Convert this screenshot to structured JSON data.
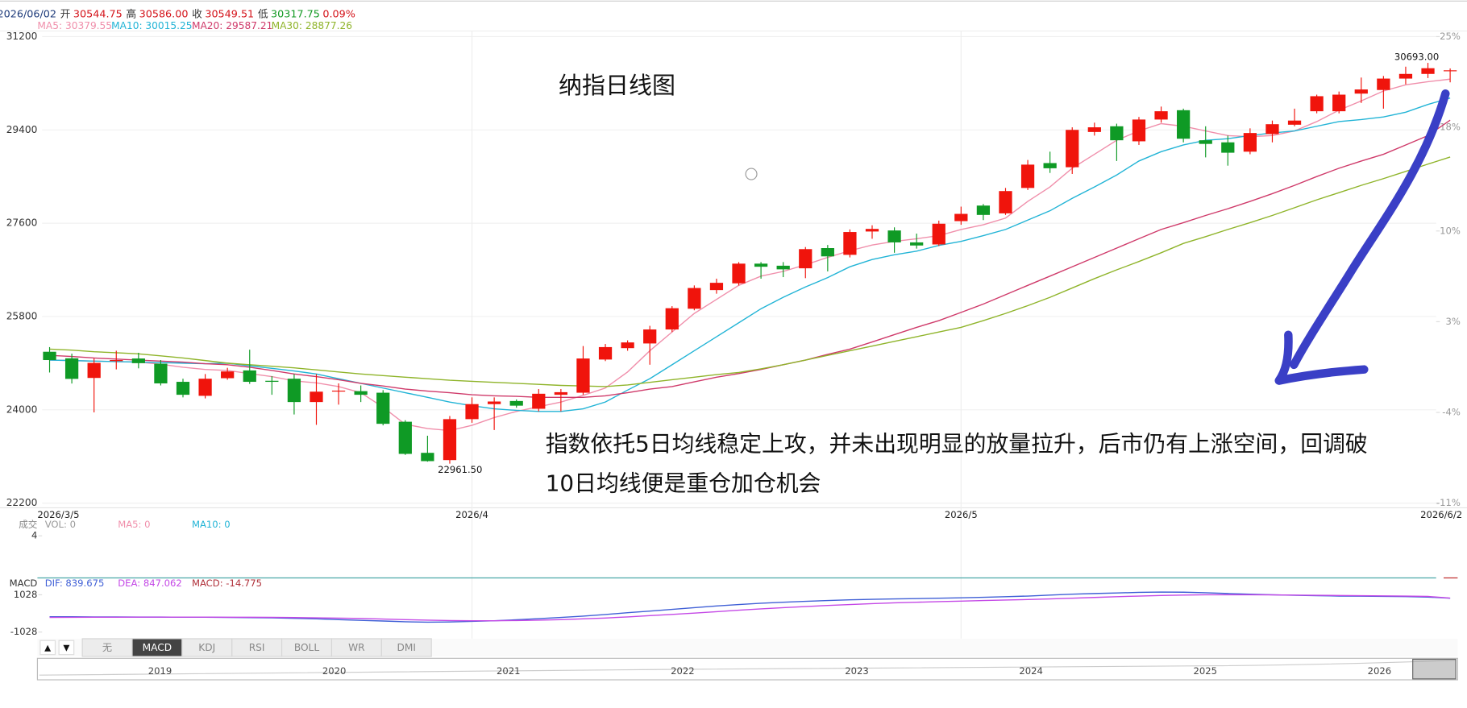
{
  "header": {
    "date": "2026/06/02",
    "quote": [
      {
        "label": "开",
        "value": "30544.75",
        "color": "#d4141b"
      },
      {
        "label": "高",
        "value": "30586.00",
        "color": "#d4141b"
      },
      {
        "label": "收",
        "value": "30549.51",
        "color": "#d4141b"
      },
      {
        "label": "低",
        "value": "30317.75",
        "color": "#139a24"
      }
    ],
    "change": "0.09%"
  },
  "chart_data": [
    {
      "type": "candlestick",
      "title": "纳指日线图",
      "annotation_lines": [
        "指数依托5日均线稳定上攻，并未出现明显的放量拉升，后市仍有上涨空间，回调破",
        "10日均线便是重仓加仓机会"
      ],
      "categories": [
        "2026/3/5",
        null,
        null,
        null,
        null,
        null,
        null,
        null,
        null,
        null,
        null,
        null,
        null,
        null,
        null,
        null,
        null,
        null,
        null,
        "2026/4",
        null,
        null,
        null,
        null,
        null,
        null,
        null,
        null,
        null,
        null,
        null,
        null,
        null,
        null,
        null,
        null,
        null,
        null,
        null,
        null,
        null,
        "2026/5",
        null,
        null,
        null,
        null,
        null,
        null,
        null,
        null,
        null,
        null,
        null,
        null,
        null,
        null,
        null,
        null,
        null,
        null,
        null,
        null,
        null,
        "2026/6/2"
      ],
      "open": [
        25120,
        24994,
        24615,
        24940,
        24990,
        24890,
        24540,
        24270,
        24610,
        24760,
        24560,
        24600,
        24150,
        24360,
        24360,
        24330,
        23770,
        23170,
        23030,
        23820,
        24110,
        24170,
        24020,
        24290,
        24330,
        24970,
        25190,
        25280,
        25550,
        25950,
        26310,
        26440,
        26820,
        26780,
        26730,
        27120,
        26990,
        27440,
        27460,
        27230,
        27190,
        27640,
        27940,
        27790,
        28280,
        28760,
        28680,
        29360,
        29470,
        29180,
        29600,
        29780,
        29200,
        29160,
        28980,
        29320,
        29500,
        29760,
        29760,
        30100,
        30170,
        30390,
        30480,
        30544.75
      ],
      "high": [
        25210,
        25084,
        24994,
        25140,
        25100,
        24960,
        24600,
        24690,
        24810,
        25160,
        24650,
        24690,
        24690,
        24510,
        24470,
        24380,
        23800,
        23500,
        23880,
        24240,
        24240,
        24200,
        24400,
        24400,
        25230,
        25270,
        25340,
        25620,
        26000,
        26400,
        26530,
        26850,
        26850,
        26850,
        27140,
        27180,
        27480,
        27560,
        27520,
        27400,
        27650,
        27920,
        27970,
        28280,
        28820,
        28980,
        29450,
        29540,
        29520,
        29650,
        29850,
        29810,
        29470,
        29290,
        29430,
        29580,
        29810,
        30080,
        30140,
        30410,
        30440,
        30620,
        30693,
        30586
      ],
      "low": [
        24720,
        24507,
        23950,
        24780,
        24800,
        24470,
        24240,
        24220,
        24580,
        24500,
        24290,
        23910,
        23710,
        24100,
        24150,
        23700,
        23130,
        23000,
        22961.5,
        23750,
        23610,
        24040,
        23970,
        23970,
        24290,
        24940,
        25140,
        24870,
        25500,
        25920,
        26240,
        26400,
        26530,
        26560,
        26540,
        26670,
        26940,
        27300,
        27030,
        27110,
        27160,
        27570,
        27660,
        27760,
        28240,
        28570,
        28550,
        29290,
        28800,
        29110,
        29540,
        29160,
        28870,
        28710,
        28930,
        29160,
        29470,
        29720,
        29720,
        29920,
        29810,
        30280,
        30400,
        30317.75
      ],
      "close": [
        24960,
        24597,
        24905,
        24960,
        24900,
        24510,
        24290,
        24600,
        24740,
        24540,
        24540,
        24150,
        24350,
        24370,
        24290,
        23730,
        23150,
        23010,
        23820,
        24110,
        24160,
        24080,
        24310,
        24340,
        24990,
        25210,
        25300,
        25550,
        25960,
        26350,
        26450,
        26820,
        26760,
        26710,
        27100,
        26960,
        27430,
        27490,
        27230,
        27170,
        27590,
        27780,
        27760,
        28220,
        28730,
        28660,
        29400,
        29450,
        29200,
        29600,
        29760,
        29230,
        29130,
        28960,
        29340,
        29510,
        29580,
        30050,
        30080,
        30180,
        30390,
        30480,
        30590,
        30549.51
      ],
      "high_labels": [
        null,
        null,
        null,
        null,
        null,
        null,
        null,
        null,
        null,
        null,
        null,
        null,
        null,
        null,
        null,
        null,
        null,
        null,
        null,
        null,
        null,
        null,
        null,
        null,
        null,
        null,
        null,
        null,
        null,
        null,
        null,
        null,
        null,
        null,
        null,
        null,
        null,
        null,
        null,
        null,
        null,
        null,
        null,
        null,
        null,
        null,
        null,
        null,
        null,
        null,
        null,
        null,
        null,
        null,
        null,
        null,
        null,
        null,
        null,
        null,
        null,
        null,
        "30693.00",
        null
      ],
      "low_labels": [
        null,
        null,
        null,
        null,
        null,
        null,
        null,
        null,
        null,
        null,
        null,
        null,
        null,
        null,
        null,
        null,
        null,
        null,
        "22961.50",
        null,
        null,
        null,
        null,
        null,
        null,
        null,
        null,
        null,
        null,
        null,
        null,
        null,
        null,
        null,
        null,
        null,
        null,
        null,
        null,
        null,
        null,
        null,
        null,
        null,
        null,
        null,
        null,
        null,
        null,
        null,
        null,
        null,
        null,
        null,
        null,
        null,
        null,
        null,
        null,
        null,
        null,
        null,
        null,
        null
      ],
      "up_color": "#f0140c",
      "down_color": "#0f9a25",
      "series": [
        {
          "name": "MA5: 30379.55",
          "color": "#f08fab",
          "values": [
            24960,
            24950,
            24940,
            24930,
            24920,
            24880,
            24820,
            24780,
            24760,
            24700,
            24640,
            24560,
            24520,
            24450,
            24330,
            24050,
            23720,
            23640,
            23600,
            23700,
            23850,
            23970,
            24060,
            24150,
            24280,
            24420,
            24730,
            25140,
            25500,
            25860,
            26130,
            26400,
            26580,
            26670,
            26800,
            26940,
            27070,
            27180,
            27250,
            27300,
            27360,
            27480,
            27570,
            27700,
            28020,
            28300,
            28660,
            28930,
            29200,
            29380,
            29520,
            29470,
            29380,
            29290,
            29270,
            29290,
            29380,
            29560,
            29780,
            29960,
            30150,
            30270,
            30330,
            30379.55
          ]
        },
        {
          "name": "MA10: 30015.25",
          "color": "#22b4d6",
          "values": [
            24960,
            24950,
            24940,
            24930,
            24920,
            24910,
            24900,
            24890,
            24900,
            24850,
            24800,
            24750,
            24690,
            24600,
            24510,
            24420,
            24330,
            24240,
            24150,
            24080,
            24020,
            23990,
            23970,
            23970,
            24020,
            24150,
            24380,
            24600,
            24870,
            25140,
            25410,
            25680,
            25950,
            26170,
            26370,
            26550,
            26760,
            26900,
            26990,
            27060,
            27170,
            27250,
            27360,
            27480,
            27660,
            27840,
            28080,
            28300,
            28530,
            28800,
            28980,
            29110,
            29200,
            29230,
            29290,
            29340,
            29380,
            29470,
            29560,
            29600,
            29650,
            29740,
            29890,
            30015.25
          ]
        },
        {
          "name": "MA20: 29587.21",
          "color": "#cf3a6a",
          "values": [
            25050,
            25030,
            25000,
            24980,
            24960,
            24940,
            24920,
            24890,
            24870,
            24820,
            24760,
            24690,
            24640,
            24580,
            24510,
            24460,
            24400,
            24360,
            24330,
            24290,
            24270,
            24260,
            24240,
            24240,
            24240,
            24270,
            24330,
            24400,
            24450,
            24540,
            24630,
            24700,
            24780,
            24870,
            24960,
            25070,
            25170,
            25310,
            25450,
            25590,
            25720,
            25880,
            26040,
            26220,
            26400,
            26580,
            26760,
            26940,
            27120,
            27300,
            27480,
            27610,
            27750,
            27880,
            28020,
            28170,
            28330,
            28500,
            28660,
            28800,
            28930,
            29110,
            29290,
            29587.21
          ]
        },
        {
          "name": "MA30: 28877.26",
          "color": "#8fb42a",
          "values": [
            25170,
            25150,
            25120,
            25100,
            25080,
            25040,
            25000,
            24950,
            24900,
            24870,
            24840,
            24810,
            24770,
            24730,
            24690,
            24660,
            24630,
            24600,
            24570,
            24550,
            24530,
            24510,
            24490,
            24470,
            24460,
            24450,
            24480,
            24530,
            24580,
            24630,
            24680,
            24720,
            24790,
            24870,
            24960,
            25050,
            25140,
            25230,
            25320,
            25410,
            25500,
            25590,
            25720,
            25860,
            26010,
            26170,
            26350,
            26530,
            26700,
            26860,
            27030,
            27210,
            27340,
            27480,
            27610,
            27750,
            27900,
            28050,
            28190,
            28330,
            28460,
            28600,
            28740,
            28877.26
          ]
        }
      ],
      "ylim": [
        22200,
        31200
      ],
      "yticks": [
        31200,
        29400,
        27600,
        25800,
        24000,
        22200
      ],
      "y2lim": [
        -11,
        25
      ],
      "y2ticks": [
        {
          "value": 25,
          "label": "25%"
        },
        {
          "value": 18,
          "label": "18%"
        },
        {
          "value": 10,
          "label": "10%"
        },
        {
          "value": 3,
          "label": "3%"
        },
        {
          "value": -4,
          "label": "-4%"
        },
        {
          "value": -11,
          "label": "-11%"
        }
      ],
      "grid": true
    },
    {
      "type": "volume",
      "title": "成交",
      "series": [
        {
          "name": "VOL: 0",
          "color": "#999999",
          "values": []
        },
        {
          "name": "MA5: 0",
          "color": "#f08fab",
          "values": []
        },
        {
          "name": "MA10: 0",
          "color": "#22b4d6",
          "values": []
        }
      ],
      "ylim": [
        0,
        4
      ],
      "yticks": [
        4
      ]
    },
    {
      "type": "macd",
      "title": "MACD",
      "series": [
        {
          "name": "DIF: 839.675",
          "color": "#3f5fd6",
          "values": [
            -180,
            -180,
            -190,
            -190,
            -200,
            -200,
            -210,
            -210,
            -220,
            -230,
            -240,
            -270,
            -300,
            -340,
            -380,
            -420,
            -460,
            -480,
            -470,
            -440,
            -400,
            -350,
            -290,
            -220,
            -150,
            -60,
            40,
            130,
            220,
            320,
            410,
            490,
            560,
            620,
            670,
            710,
            750,
            780,
            800,
            820,
            840,
            860,
            890,
            920,
            960,
            1010,
            1060,
            1100,
            1130,
            1160,
            1180,
            1170,
            1140,
            1100,
            1060,
            1030,
            1000,
            980,
            960,
            950,
            940,
            930,
            900,
            839.675
          ]
        },
        {
          "name": "DEA: 847.062",
          "color": "#c448e6",
          "values": [
            -220,
            -215,
            -210,
            -210,
            -205,
            -205,
            -205,
            -205,
            -210,
            -210,
            -215,
            -225,
            -240,
            -260,
            -280,
            -310,
            -340,
            -370,
            -390,
            -400,
            -400,
            -390,
            -370,
            -340,
            -300,
            -250,
            -190,
            -120,
            -50,
            20,
            100,
            180,
            250,
            320,
            380,
            440,
            490,
            540,
            580,
            620,
            650,
            680,
            710,
            740,
            770,
            800,
            840,
            880,
            920,
            960,
            990,
            1010,
            1030,
            1030,
            1030,
            1020,
            1010,
            1000,
            990,
            980,
            970,
            960,
            940,
            847.062
          ]
        },
        {
          "name": "MACD: -14.775",
          "color": "#b0303a",
          "values": []
        }
      ],
      "ylim": [
        -1340,
        1340
      ],
      "yticks": [
        1028,
        -1028
      ]
    }
  ],
  "toolbar": {
    "arrows": [
      "▲",
      "▼"
    ],
    "tabs": [
      "无",
      "MACD",
      "KDJ",
      "RSI",
      "BOLL",
      "WR",
      "DMI"
    ],
    "active": "MACD"
  },
  "navigator": {
    "years": [
      "2019",
      "2020",
      "2021",
      "2022",
      "2023",
      "2024",
      "2025",
      "2026"
    ]
  }
}
